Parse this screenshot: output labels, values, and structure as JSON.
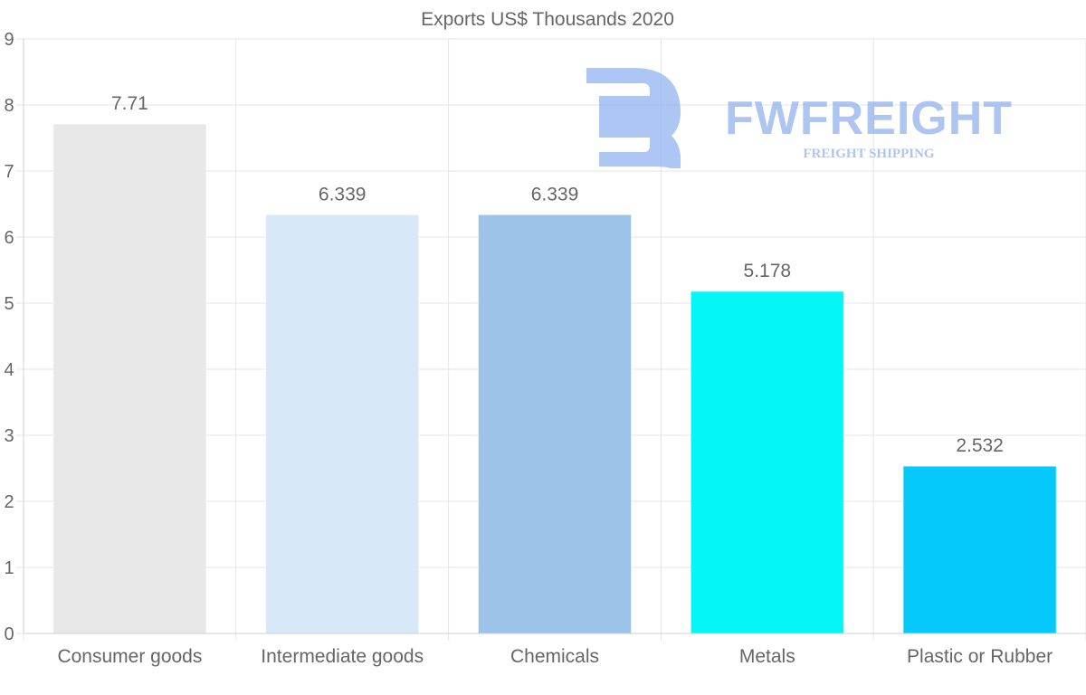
{
  "chart_data": {
    "type": "bar",
    "title": "Exports US$ Thousands 2020",
    "categories": [
      "Consumer goods",
      "Intermediate goods",
      "Chemicals",
      "Metals",
      "Plastic or Rubber"
    ],
    "values": [
      7.71,
      6.339,
      6.339,
      5.178,
      2.532
    ],
    "value_labels": [
      "7.71",
      "6.339",
      "6.339",
      "5.178",
      "2.532"
    ],
    "colors": [
      "#e8e8e8",
      "#d8e8f8",
      "#9dc4e8",
      "#05f6f6",
      "#05c8fb"
    ],
    "ylim": [
      0,
      9
    ],
    "yticks": [
      "0",
      "1",
      "2",
      "3",
      "4",
      "5",
      "6",
      "7",
      "8",
      "9"
    ],
    "grid": true,
    "xlabel": "",
    "ylabel": ""
  },
  "watermark": {
    "brand": "FWFREIGHT",
    "tagline": "FREIGHT SHIPPING",
    "color": "#8fb0ee"
  }
}
